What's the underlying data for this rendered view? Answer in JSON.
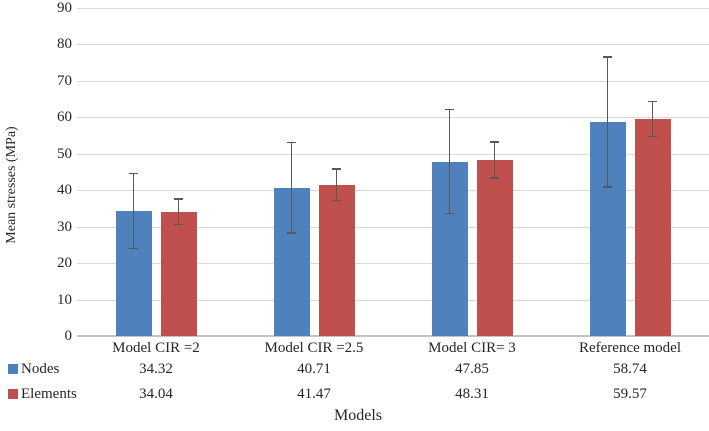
{
  "chart_data": {
    "type": "bar",
    "title": "",
    "categories": [
      "Model CIR =2",
      "Model CIR =2.5",
      "Model CIR= 3",
      "Reference model"
    ],
    "series": [
      {
        "name": "Nodes",
        "color": "#4F81BD",
        "values": [
          34.32,
          40.71,
          47.85,
          58.74
        ],
        "errors": [
          10.3,
          12.4,
          14.3,
          17.8
        ]
      },
      {
        "name": "Elements",
        "color": "#C0504D",
        "values": [
          34.04,
          41.47,
          48.31,
          59.57
        ],
        "errors": [
          3.5,
          4.3,
          4.9,
          4.8
        ]
      }
    ],
    "xlabel": "Models",
    "ylabel": "Mean stresses (MPa)",
    "ylim": [
      0,
      90
    ],
    "yticks": [
      0,
      10,
      20,
      30,
      40,
      50,
      60,
      70,
      80,
      90
    ],
    "grid": true,
    "legend_position": "bottom-left",
    "data_table_shown": true,
    "colors": {
      "grid": "#D9D9D9",
      "baseline": "#C3C3C3",
      "error_bar": "#595959",
      "text": "#262626",
      "background": "#FFFFFF"
    }
  }
}
